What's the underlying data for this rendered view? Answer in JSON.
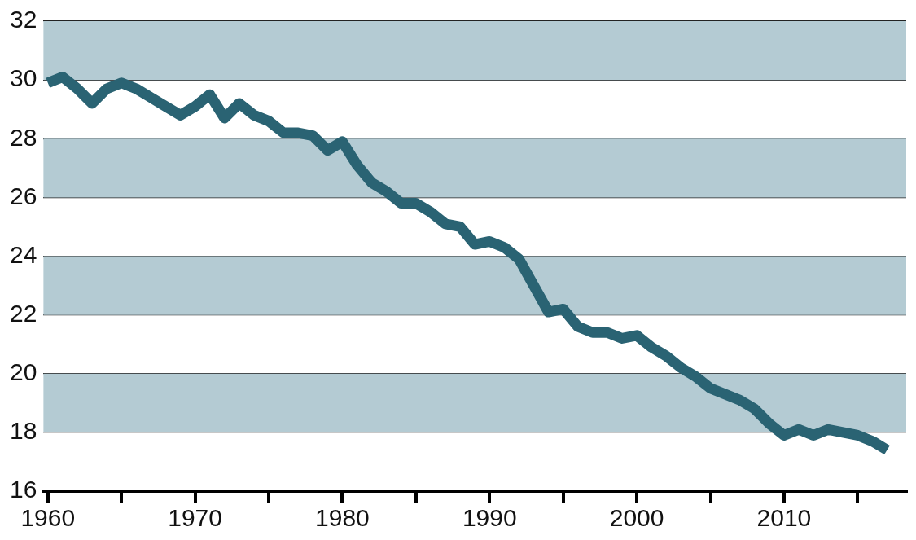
{
  "chart_data": {
    "type": "line",
    "x": [
      1960,
      1961,
      1962,
      1963,
      1964,
      1965,
      1966,
      1967,
      1968,
      1969,
      1970,
      1971,
      1972,
      1973,
      1974,
      1975,
      1976,
      1977,
      1978,
      1979,
      1980,
      1981,
      1982,
      1983,
      1984,
      1985,
      1986,
      1987,
      1988,
      1989,
      1990,
      1991,
      1992,
      1993,
      1994,
      1995,
      1996,
      1997,
      1998,
      1999,
      2000,
      2001,
      2002,
      2003,
      2004,
      2005,
      2006,
      2007,
      2008,
      2009,
      2010,
      2011,
      2012,
      2013,
      2014,
      2015,
      2016,
      2017
    ],
    "series": [
      {
        "color": "#2a6373",
        "values": [
          29.9,
          30.1,
          29.7,
          29.2,
          29.7,
          29.9,
          29.7,
          29.4,
          29.1,
          28.8,
          29.1,
          29.5,
          28.7,
          29.2,
          28.8,
          28.6,
          28.2,
          28.2,
          28.1,
          27.6,
          27.9,
          27.1,
          26.5,
          26.2,
          25.8,
          25.8,
          25.5,
          25.1,
          25.0,
          24.4,
          24.5,
          24.3,
          23.9,
          23.0,
          22.1,
          22.2,
          21.6,
          21.4,
          21.4,
          21.2,
          21.3,
          20.9,
          20.6,
          20.2,
          19.9,
          19.5,
          19.3,
          19.1,
          18.8,
          18.3,
          17.9,
          18.1,
          17.9,
          18.1,
          18.0,
          17.9,
          17.7,
          17.4
        ]
      }
    ],
    "xlim": [
      1959.7,
      2018.3
    ],
    "xticks": [
      1960,
      {
        "value": 1965,
        "label": null
      },
      1970,
      {
        "value": 1975,
        "label": null
      },
      1980,
      {
        "value": 1985,
        "label": null
      },
      1990,
      {
        "value": 1995,
        "label": null
      },
      2000,
      {
        "value": 2005,
        "label": null
      },
      2010,
      {
        "value": 2015,
        "label": null
      }
    ],
    "ylim": [
      16,
      32
    ],
    "yticks": [
      16,
      18,
      20,
      22,
      24,
      26,
      28,
      30,
      32
    ],
    "bands": [
      {
        "axis": "y",
        "from": 18,
        "to": 20,
        "color": "#b4cbd3"
      },
      {
        "axis": "y",
        "from": 22,
        "to": 24,
        "color": "#b4cbd3"
      },
      {
        "axis": "y",
        "from": 26,
        "to": 28,
        "color": "#b4cbd3"
      },
      {
        "axis": "y",
        "from": 30,
        "to": 32,
        "color": "#b4cbd3"
      }
    ],
    "grid": "y",
    "legend": false,
    "marker": "none",
    "line_style": "solid"
  }
}
